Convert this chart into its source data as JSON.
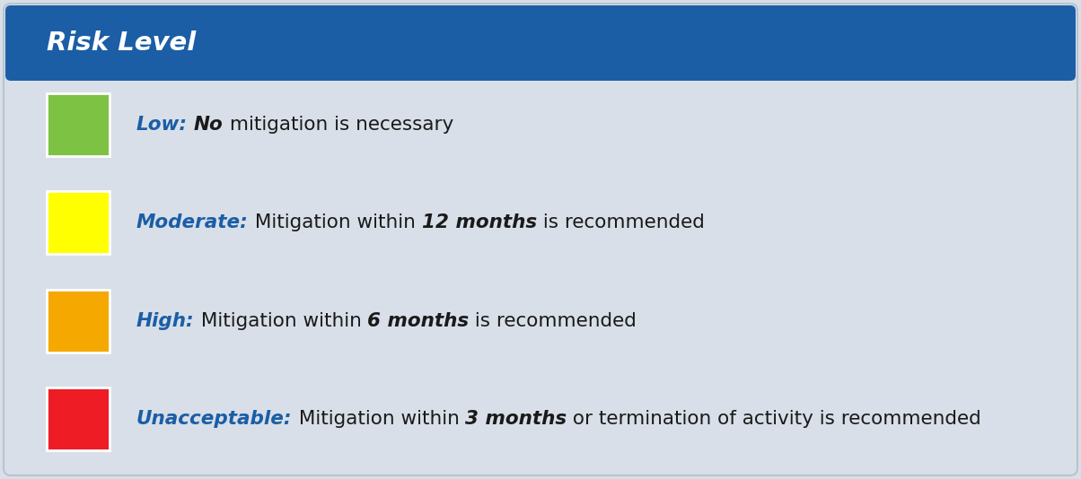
{
  "title": "Risk Level",
  "title_bg_color": "#1b5ea6",
  "title_text_color": "#ffffff",
  "body_bg_color": "#d8dfe8",
  "box_border_color": "#ffffff",
  "items": [
    {
      "color": "#7dc243",
      "label": "Low:",
      "label_color": "#1b5ea6",
      "segments": [
        {
          "text": " ",
          "bold": false,
          "italic": false,
          "color": "#1a1a1a"
        },
        {
          "text": "No",
          "bold": true,
          "italic": true,
          "color": "#1a1a1a"
        },
        {
          "text": " mitigation is necessary",
          "bold": false,
          "italic": false,
          "color": "#1a1a1a"
        }
      ]
    },
    {
      "color": "#ffff00",
      "label": "Moderate:",
      "label_color": "#1b5ea6",
      "segments": [
        {
          "text": " Mitigation within ",
          "bold": false,
          "italic": false,
          "color": "#1a1a1a"
        },
        {
          "text": "12 months",
          "bold": true,
          "italic": true,
          "color": "#1a1a1a"
        },
        {
          "text": " is recommended",
          "bold": false,
          "italic": false,
          "color": "#1a1a1a"
        }
      ]
    },
    {
      "color": "#f5a800",
      "label": "High:",
      "label_color": "#1b5ea6",
      "segments": [
        {
          "text": " Mitigation within ",
          "bold": false,
          "italic": false,
          "color": "#1a1a1a"
        },
        {
          "text": "6 months",
          "bold": true,
          "italic": true,
          "color": "#1a1a1a"
        },
        {
          "text": " is recommended",
          "bold": false,
          "italic": false,
          "color": "#1a1a1a"
        }
      ]
    },
    {
      "color": "#ee1c25",
      "label": "Unacceptable:",
      "label_color": "#1b5ea6",
      "segments": [
        {
          "text": " Mitigation within ",
          "bold": false,
          "italic": false,
          "color": "#1a1a1a"
        },
        {
          "text": "3 months",
          "bold": true,
          "italic": true,
          "color": "#1a1a1a"
        },
        {
          "text": " or termination of activity is recommended",
          "bold": false,
          "italic": false,
          "color": "#1a1a1a"
        }
      ]
    }
  ],
  "fig_width": 12.04,
  "fig_height": 5.34,
  "dpi": 100,
  "text_fontsize": 15.5,
  "label_fontsize": 15.5,
  "title_fontsize": 21
}
